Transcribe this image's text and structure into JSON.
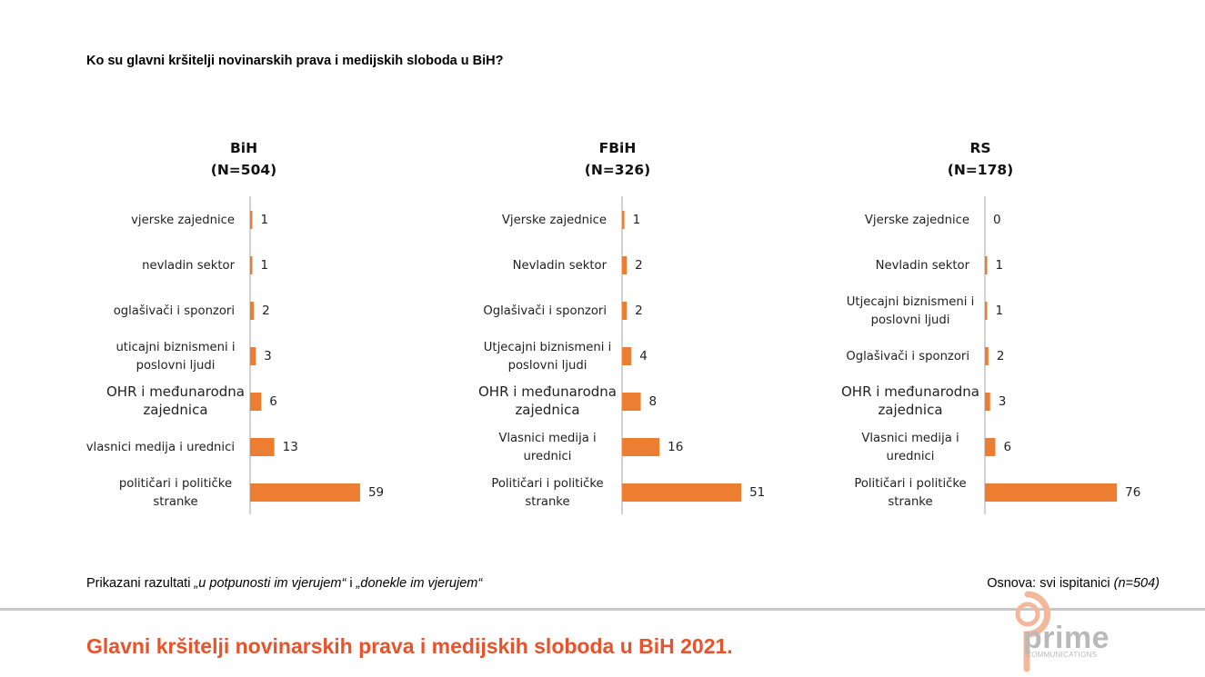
{
  "question": "Ko su glavni kršitelji novinarskih prava i medijskih sloboda u BiH?",
  "note_left_prefix": "Prikazani razultati ",
  "note_left_italic1": "„u potpunosti im vjerujem“",
  "note_left_mid": " i ",
  "note_left_italic2": "„donekle im vjerujem“",
  "note_right_prefix": "Osnova: svi ispitanici ",
  "note_right_italic": "(n=504)",
  "footer_title": "Glavni kršitelji novinarskih prava i medijskih sloboda u BiH 2021.",
  "logo": {
    "text": "prime",
    "sub": "COMMUNICATIONS"
  },
  "colors": {
    "bar": "#ed7d31",
    "footer": "#e8532b"
  },
  "chart_data": [
    {
      "type": "bar",
      "orientation": "horizontal",
      "title": [
        "BiH",
        "(N=504)"
      ],
      "categories": [
        [
          "vjerske zajednice"
        ],
        [
          "nevladin sektor"
        ],
        [
          "oglašivači i sponzori"
        ],
        [
          "uticajni biznismeni i",
          "poslovni ljudi"
        ],
        [
          "OHR i međunarodna",
          "zajednica"
        ],
        [
          "vlasnici medija i urednici"
        ],
        [
          "političari i političke",
          "stranke"
        ]
      ],
      "values": [
        1,
        1,
        2,
        3,
        6,
        13,
        59
      ]
    },
    {
      "type": "bar",
      "orientation": "horizontal",
      "title": [
        "FBiH",
        "(N=326)"
      ],
      "categories": [
        [
          "Vjerske zajednice"
        ],
        [
          "Nevladin sektor"
        ],
        [
          "Oglašivači i sponzori"
        ],
        [
          "Utjecajni biznismeni i",
          "poslovni ljudi"
        ],
        [
          "OHR i međunarodna",
          "zajednica"
        ],
        [
          "Vlasnici medija i",
          "urednici"
        ],
        [
          "Političari i političke",
          "stranke"
        ]
      ],
      "values": [
        1,
        2,
        2,
        4,
        8,
        16,
        51
      ]
    },
    {
      "type": "bar",
      "orientation": "horizontal",
      "title": [
        "RS",
        "(N=178)"
      ],
      "categories": [
        [
          "Vjerske zajednice"
        ],
        [
          "Nevladin sektor"
        ],
        [
          "Utjecajni biznismeni i",
          "poslovni ljudi"
        ],
        [
          "Oglašivači i sponzori"
        ],
        [
          "OHR i međunarodna",
          "zajednica"
        ],
        [
          "Vlasnici medija i",
          "urednici"
        ],
        [
          "Političari i političke",
          "stranke"
        ]
      ],
      "values": [
        0,
        1,
        1,
        2,
        3,
        6,
        76
      ]
    }
  ]
}
